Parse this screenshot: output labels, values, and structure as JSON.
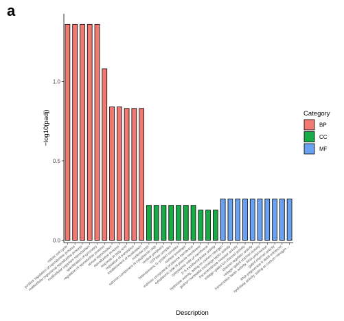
{
  "panel_label": "a",
  "chart_data": {
    "type": "bar",
    "xlabel": "Description",
    "ylabel": "−log10(padj)",
    "ylim": [
      0,
      1.4
    ],
    "yticks": [
      0.0,
      0.5,
      1.0
    ],
    "ytick_labels": [
      "0.0",
      "0.5",
      "1.0"
    ],
    "grid": false,
    "legend_placement": "right",
    "legend_title": "Category",
    "colors": {
      "BP": "#f07a72",
      "CC": "#1aaa47",
      "MF": "#6aa1f0"
    },
    "series": [
      {
        "name": "BP",
        "categories": [
          "mitotic cell cycle",
          "positive regulation of reproductive process",
          "multicellular organismal reproductive process",
          "multicellular organism reproduction",
          "specification of symmetry",
          "regulation of reproductive process",
          "sexual reproduction",
          "reproductive process",
          "response to fatty acid",
          "regulation of translation",
          "establishment of localization"
        ],
        "values": [
          1.36,
          1.36,
          1.36,
          1.36,
          1.36,
          1.08,
          0.84,
          0.84,
          0.83,
          0.83,
          0.83
        ]
      },
      {
        "name": "CC",
        "categories": [
          "nucleolar part",
          "extrinsic component of cytoplasmic side",
          "nuclear periphery",
          "GTPase complex",
          "heterotrimeric G−protein complex",
          "nuclear envelope",
          "extrinsic component of plasma membrane",
          "cytoplasmic side of plasma membrane",
          "cytoplasmic side of membrane",
          "2−5 exoribonuclease activity"
        ],
        "values": [
          0.22,
          0.22,
          0.22,
          0.22,
          0.22,
          0.22,
          0.22,
          0.19,
          0.19,
          0.19
        ]
      },
      {
        "name": "MF",
        "categories": [
          "hydrolase activity, acting on carbon−nitrogen",
          "guanyl−nucleotide exchange factor activity",
          "transmembrane receptor activity",
          "voltage−gated ion channel activity",
          "channel regulator activity",
          "voltage−gated channel activity",
          "transcription factor activity, RNA polymerase",
          "gated channel activity",
          "RNA polymerase II distal enhancer",
          "hydrolase activity, acting on carbon−nitrogen ..."
        ],
        "values": [
          0.26,
          0.26,
          0.26,
          0.26,
          0.26,
          0.26,
          0.26,
          0.26,
          0.26,
          0.26
        ]
      }
    ]
  }
}
